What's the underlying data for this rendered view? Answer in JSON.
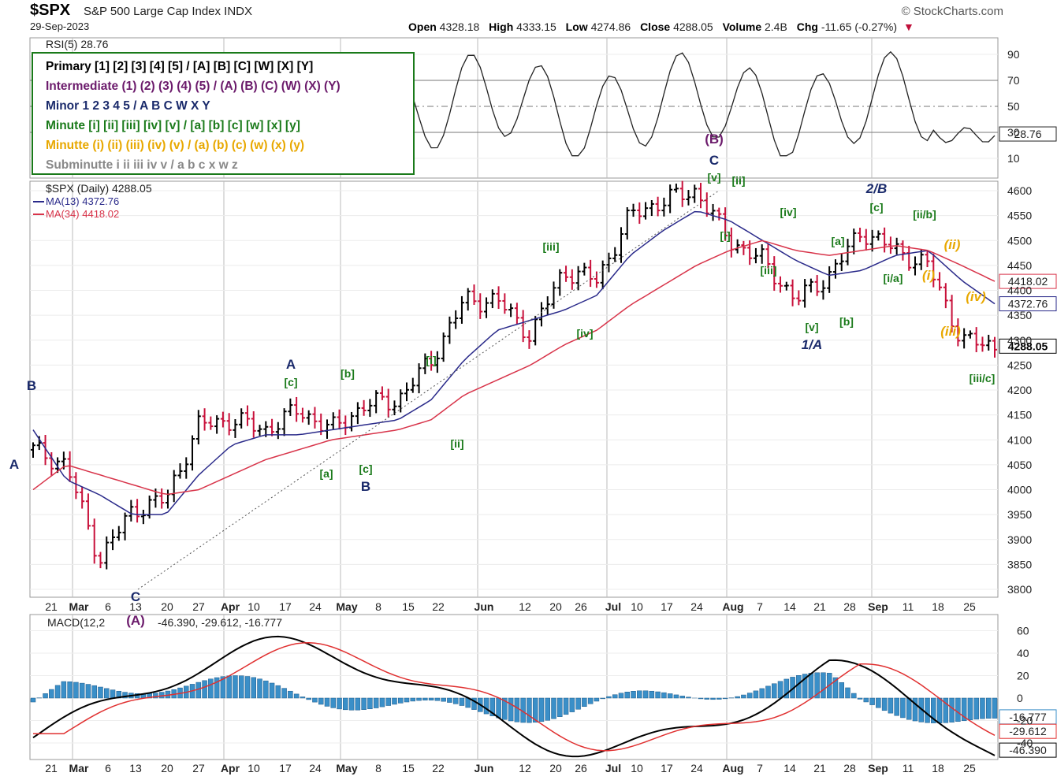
{
  "header": {
    "symbol": "$SPX",
    "description": "S&P 500 Large Cap Index INDX",
    "date": "29-Sep-2023",
    "source": "© StockCharts.com",
    "open_label": "Open",
    "open": "4328.18",
    "high_label": "High",
    "high": "4333.15",
    "low_label": "Low",
    "low": "4274.86",
    "close_label": "Close",
    "close": "4288.05",
    "volume_label": "Volume",
    "volume": "2.4B",
    "chg_label": "Chg",
    "chg": "-11.65 (-0.27%)"
  },
  "rsi_panel": {
    "label": "RSI(5) 28.76",
    "last": "28.76",
    "ticks": [
      "90",
      "70",
      "50",
      "30",
      "10"
    ]
  },
  "wave_legend": [
    {
      "text": "Primary [1] [2] [3] [4] [5] / [A] [B] [C] [W] [X] [Y]",
      "color": "#000000"
    },
    {
      "text": "Intermediate (1) (2) (3) (4) (5) / (A) (B) (C) (W) (X) (Y)",
      "color": "#6b1a6b"
    },
    {
      "text": "Minor 1 2 3 4 5 / A B C W X Y",
      "color": "#1a2a6b"
    },
    {
      "text": "Minute [i] [ii] [iii] [iv] [v] / [a] [b] [c] [w] [x] [y]",
      "color": "#1a7a1a"
    },
    {
      "text": "Minutte (i) (ii) (iii) (iv) (v) / (a) (b) (c) (w) (x) (y)",
      "color": "#e8a800"
    },
    {
      "text": "Subminutte i ii iii iv v / a b c x w z",
      "color": "#888888"
    }
  ],
  "price_panel": {
    "label": "$SPX (Daily) 4288.05",
    "ma13_label": "MA(13) 4372.76",
    "ma34_label": "MA(34) 4418.02",
    "last_close": "4288.05",
    "ma13_last": "4372.76",
    "ma34_last": "4418.02",
    "ticks": [
      "4600",
      "4550",
      "4500",
      "4450",
      "4400",
      "4350",
      "4300",
      "4250",
      "4200",
      "4150",
      "4100",
      "4050",
      "4000",
      "3950",
      "3900",
      "3850",
      "3800"
    ]
  },
  "macd_panel": {
    "label_prefix": "MACD(12,2",
    "label_values": "-46.390, -29.612, -16.777",
    "v1": "-46.390",
    "v2": "-29.612",
    "v3": "-16.777",
    "ticks": [
      "60",
      "40",
      "20",
      "0",
      "-20",
      "-40"
    ],
    "badges": [
      "-16.777",
      "-29.612",
      "-46.390"
    ]
  },
  "x_axis": [
    "21",
    "Mar",
    "6",
    "13",
    "20",
    "27",
    "Apr",
    "10",
    "17",
    "24",
    "May",
    "8",
    "15",
    "22",
    "Jun",
    "12",
    "20",
    "26",
    "Jul",
    "10",
    "17",
    "24",
    "Aug",
    "7",
    "14",
    "21",
    "28",
    "Sep",
    "11",
    "18",
    "25"
  ],
  "wave_labels": [
    {
      "text": "B",
      "color": "#1a2a6b"
    },
    {
      "text": "A",
      "color": "#1a2a6b"
    },
    {
      "text": "C",
      "color": "#1a2a6b"
    },
    {
      "text": "(A)",
      "color": "#6b1a6b"
    },
    {
      "text": "A",
      "color": "#1a2a6b"
    },
    {
      "text": "[c]",
      "color": "#1a7a1a"
    },
    {
      "text": "[b]",
      "color": "#1a7a1a"
    },
    {
      "text": "[a]",
      "color": "#1a7a1a"
    },
    {
      "text": "[c]",
      "color": "#1a7a1a"
    },
    {
      "text": "B",
      "color": "#1a2a6b"
    },
    {
      "text": "[i]",
      "color": "#1a7a1a"
    },
    {
      "text": "[ii]",
      "color": "#1a7a1a"
    },
    {
      "text": "[iii]",
      "color": "#1a7a1a"
    },
    {
      "text": "[iv]",
      "color": "#1a7a1a"
    },
    {
      "text": "(B)",
      "color": "#6b1a6b"
    },
    {
      "text": "C",
      "color": "#1a2a6b"
    },
    {
      "text": "[v]",
      "color": "#1a7a1a"
    },
    {
      "text": "[ii]",
      "color": "#1a7a1a"
    },
    {
      "text": "[i]",
      "color": "#1a7a1a"
    },
    {
      "text": "[iv]",
      "color": "#1a7a1a"
    },
    {
      "text": "[iii]",
      "color": "#1a7a1a"
    },
    {
      "text": "[v]",
      "color": "#1a7a1a"
    },
    {
      "text": "1/A",
      "color": "#1a2a6b"
    },
    {
      "text": "[a]",
      "color": "#1a7a1a"
    },
    {
      "text": "[b]",
      "color": "#1a7a1a"
    },
    {
      "text": "2/B",
      "color": "#1a2a6b"
    },
    {
      "text": "[c]",
      "color": "#1a7a1a"
    },
    {
      "text": "[i/a]",
      "color": "#1a7a1a"
    },
    {
      "text": "[ii/b]",
      "color": "#1a7a1a"
    },
    {
      "text": "(ii)",
      "color": "#e8a800"
    },
    {
      "text": "(i)",
      "color": "#e8a800"
    },
    {
      "text": "(iv)",
      "color": "#e8a800"
    },
    {
      "text": "(iii)",
      "color": "#e8a800"
    },
    {
      "text": "[iii/c]",
      "color": "#1a7a1a"
    }
  ],
  "chart_data": {
    "type": "line",
    "series": [
      {
        "name": "$SPX",
        "x": [
          "Feb 17",
          "Mar 1",
          "Mar 13",
          "Mar 20",
          "Mar 27",
          "Apr 10",
          "Apr 17",
          "Apr 24",
          "May 1",
          "May 8",
          "May 15",
          "May 22",
          "Jun 1",
          "Jun 12",
          "Jun 20",
          "Jun 26",
          "Jul 3",
          "Jul 10",
          "Jul 17",
          "Jul 24",
          "Jul 31",
          "Aug 7",
          "Aug 14",
          "Aug 21",
          "Aug 28",
          "Sep 1",
          "Sep 11",
          "Sep 18",
          "Sep 25",
          "Sep 29"
        ],
        "values": [
          4080,
          4050,
          3860,
          3960,
          3980,
          4130,
          4140,
          4120,
          4160,
          4120,
          4170,
          4180,
          4260,
          4380,
          4380,
          4310,
          4440,
          4420,
          4550,
          4580,
          4600,
          4500,
          4460,
          4380,
          4430,
          4520,
          4480,
          4450,
          4300,
          4288
        ]
      },
      {
        "name": "MA(13)",
        "values": [
          4120,
          4020,
          3990,
          3950,
          3950,
          4030,
          4090,
          4110,
          4110,
          4120,
          4130,
          4140,
          4180,
          4260,
          4320,
          4340,
          4360,
          4390,
          4470,
          4520,
          4560,
          4540,
          4500,
          4460,
          4430,
          4440,
          4470,
          4480,
          4420,
          4373
        ]
      },
      {
        "name": "MA(34)",
        "values": [
          4000,
          4050,
          4030,
          4010,
          3990,
          4000,
          4030,
          4060,
          4080,
          4100,
          4110,
          4120,
          4140,
          4190,
          4220,
          4250,
          4290,
          4320,
          4370,
          4410,
          4450,
          4480,
          4500,
          4480,
          4470,
          4480,
          4490,
          4480,
          4450,
          4418
        ]
      }
    ],
    "rsi": {
      "name": "RSI(5)",
      "last": 28.76,
      "ylim": [
        0,
        100
      ],
      "ticks": [
        90,
        70,
        50,
        30,
        10
      ]
    },
    "macd": {
      "name": "MACD(12,26,9)",
      "macd": -46.39,
      "signal": -29.612,
      "histogram": -16.777,
      "ylim": [
        -50,
        70
      ]
    },
    "ylim": [
      3800,
      4600
    ],
    "y_ticks": [
      4600,
      4550,
      4500,
      4450,
      4400,
      4350,
      4300,
      4250,
      4200,
      4150,
      4100,
      4050,
      4000,
      3950,
      3900,
      3850,
      3800
    ]
  },
  "colors": {
    "up": "#000000",
    "down": "#c8103a",
    "ma13": "#2a2a8a",
    "ma34": "#d8344a",
    "wave_green": "#1a7a1a",
    "wave_navy": "#1a2a6b",
    "wave_purple": "#6b1a6b",
    "wave_orange": "#e8a800",
    "macd_hist": "#3a8fc8"
  }
}
